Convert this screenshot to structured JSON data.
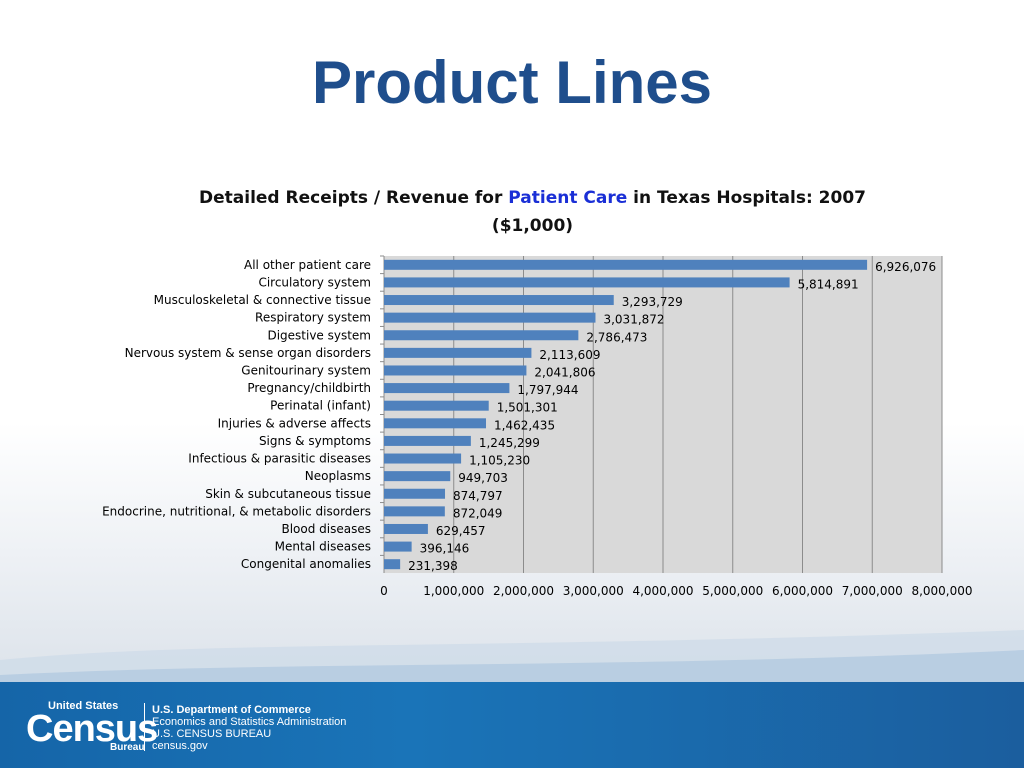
{
  "slide": {
    "title": "Product Lines"
  },
  "footer": {
    "logo_top": "United States",
    "logo_main": "Census",
    "logo_bottom": "Bureau",
    "department": "U.S. Department of Commerce",
    "administration": "Economics and Statistics Administration",
    "bureau": "U.S. CENSUS BUREAU",
    "website": "census.gov"
  },
  "colors": {
    "bar": "#4f81bd",
    "plot_background": "#d9d9d9",
    "title": "#1f4e8c",
    "title_accent": "#1a2fd6",
    "footer": "#1565a8"
  },
  "chart_data": {
    "type": "bar",
    "orientation": "horizontal",
    "title_prefix": "Detailed Receipts / Revenue for ",
    "title_highlight": "Patient Care",
    "title_suffix": " in Texas Hospitals: 2007",
    "subtitle": "($1,000)",
    "categories": [
      "All other patient care",
      "Circulatory system",
      "Musculoskeletal & connective tissue",
      "Respiratory system",
      "Digestive system",
      "Nervous system & sense organ disorders",
      "Genitourinary system",
      "Pregnancy/childbirth",
      "Perinatal (infant)",
      "Injuries & adverse affects",
      "Signs & symptoms",
      "Infectious & parasitic diseases",
      "Neoplasms",
      "Skin & subcutaneous tissue",
      "Endocrine, nutritional, & metabolic disorders",
      "Blood diseases",
      "Mental diseases",
      "Congenital anomalies"
    ],
    "values": [
      6926076,
      5814891,
      3293729,
      3031872,
      2786473,
      2113609,
      2041806,
      1797944,
      1501301,
      1462435,
      1245299,
      1105230,
      949703,
      874797,
      872049,
      629457,
      396146,
      231398
    ],
    "value_labels": [
      "6,926,076",
      "5,814,891",
      "3,293,729",
      "3,031,872",
      "2,786,473",
      "2,113,609",
      "2,041,806",
      "1,797,944",
      "1,501,301",
      "1,462,435",
      "1,245,299",
      "1,105,230",
      "949,703",
      "874,797",
      "872,049",
      "629,457",
      "396,146",
      "231,398"
    ],
    "xlim": [
      0,
      8000000
    ],
    "x_ticks": [
      0,
      1000000,
      2000000,
      3000000,
      4000000,
      5000000,
      6000000,
      7000000,
      8000000
    ],
    "x_tick_labels": [
      "0",
      "1,000,000",
      "2,000,000",
      "3,000,000",
      "4,000,000",
      "5,000,000",
      "6,000,000",
      "7,000,000",
      "8,000,000"
    ],
    "grid": "vertical",
    "legend": "none"
  }
}
